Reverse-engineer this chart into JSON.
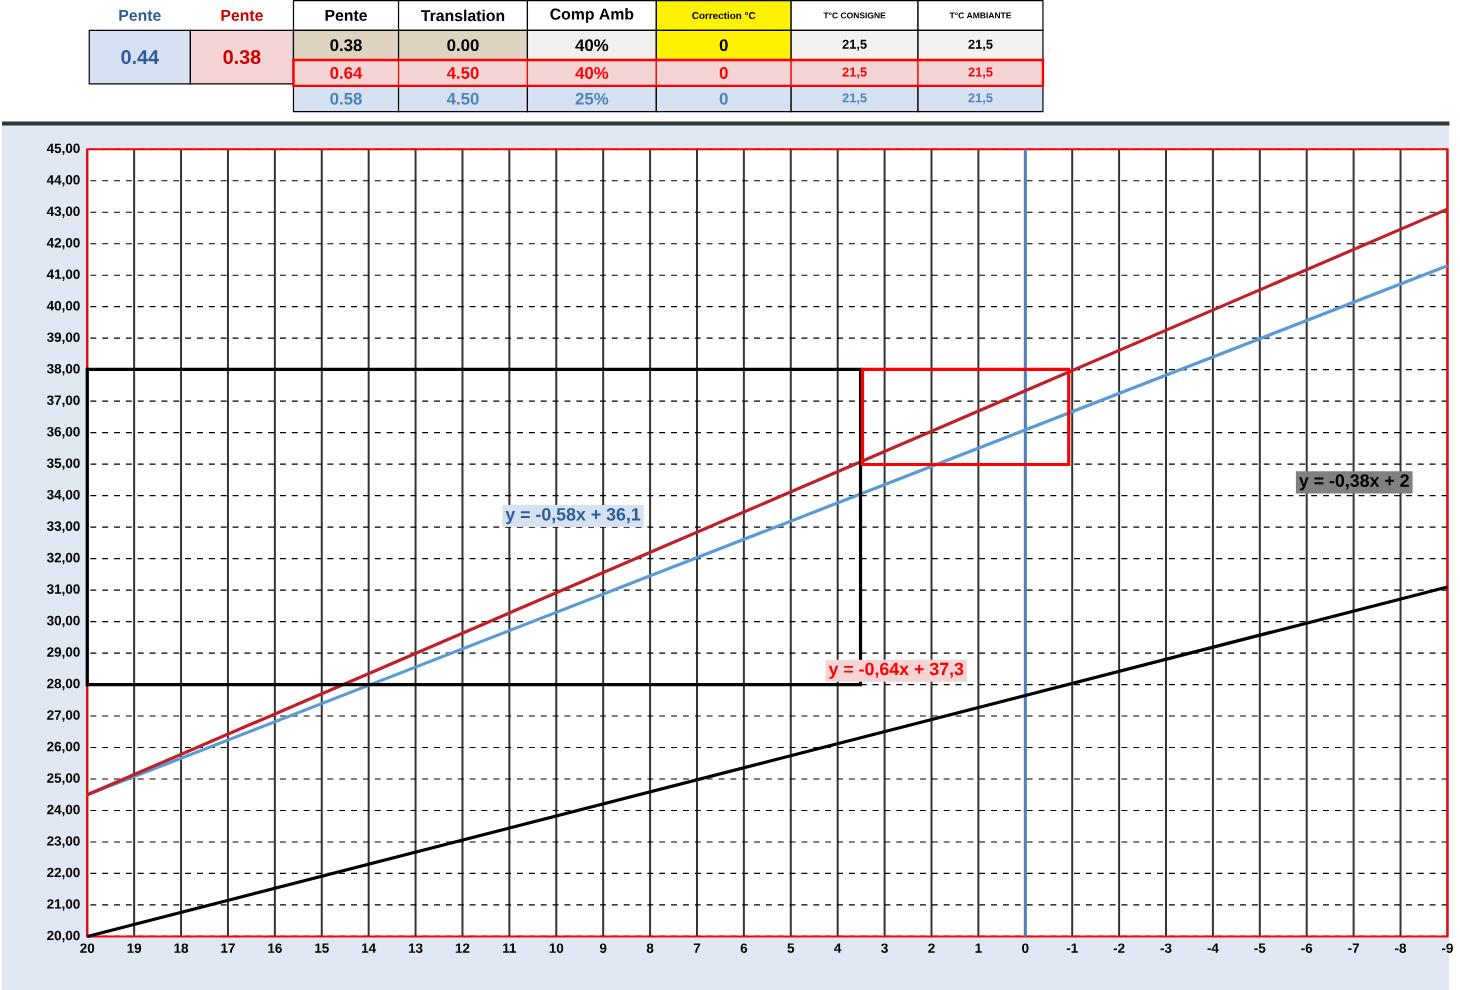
{
  "chart_data": {
    "type": "line",
    "xlim": [
      20,
      -9
    ],
    "xticks": [
      20,
      19,
      18,
      17,
      16,
      15,
      14,
      13,
      12,
      11,
      10,
      9,
      8,
      7,
      6,
      5,
      4,
      3,
      2,
      1,
      0,
      -1,
      -2,
      -3,
      -4,
      -5,
      -6,
      -7,
      -8,
      -9
    ],
    "ylim": [
      20,
      45
    ],
    "yticks": [
      {
        "value": 20,
        "label": "20,00"
      },
      {
        "value": 21,
        "label": "21,00"
      },
      {
        "value": 22,
        "label": "22,00"
      },
      {
        "value": 23,
        "label": "23,00"
      },
      {
        "value": 24,
        "label": "24,00"
      },
      {
        "value": 25,
        "label": "25,00"
      },
      {
        "value": 26,
        "label": "26,00"
      },
      {
        "value": 27,
        "label": "27,00"
      },
      {
        "value": 28,
        "label": "28,00"
      },
      {
        "value": 29,
        "label": "29,00"
      },
      {
        "value": 30,
        "label": "30,00"
      },
      {
        "value": 31,
        "label": "31,00"
      },
      {
        "value": 32,
        "label": "32,00"
      },
      {
        "value": 33,
        "label": "33,00"
      },
      {
        "value": 34,
        "label": "34,00"
      },
      {
        "value": 35,
        "label": "35,00"
      },
      {
        "value": 36,
        "label": "36,00"
      },
      {
        "value": 37,
        "label": "37,00"
      },
      {
        "value": 38,
        "label": "38,00"
      },
      {
        "value": 39,
        "label": "39,00"
      },
      {
        "value": 40,
        "label": "40,00"
      },
      {
        "value": 41,
        "label": "41,00"
      },
      {
        "value": 42,
        "label": "42,00"
      },
      {
        "value": 43,
        "label": "43,00"
      },
      {
        "value": 44,
        "label": "44,00"
      },
      {
        "value": 45,
        "label": "45,00"
      }
    ],
    "grid": true,
    "marker": "none",
    "x": [
      20,
      -9
    ],
    "series": [
      {
        "color": "#000000",
        "values": [
          20.0,
          31.1
        ]
      },
      {
        "color": "#5b9bd5",
        "values": [
          24.5,
          41.3
        ]
      },
      {
        "color": "#c0202a",
        "values": [
          24.5,
          43.1
        ]
      }
    ],
    "ref_lines": [
      {
        "axis": "x",
        "value": 0,
        "color": "#4f81bd"
      }
    ],
    "annotations": [
      "Pente",
      "Pente",
      "0.44",
      "0.38",
      "Pente",
      "Translation",
      "Comp Amb",
      "Correction °C",
      "T°C CONSIGNE",
      "T°C AMBIANTE",
      "0.38",
      "0.00",
      "40%",
      "0",
      "21,5",
      "21,5",
      "0.64",
      "4.50",
      "40%",
      "0",
      "21,5",
      "21,5",
      "0.58",
      "4.50",
      "25%",
      "0",
      "21,5",
      "21,5",
      "y = -0,58x + 36,1",
      "y = -0,64x + 37,3",
      "y = -0,38x + 2"
    ]
  }
}
